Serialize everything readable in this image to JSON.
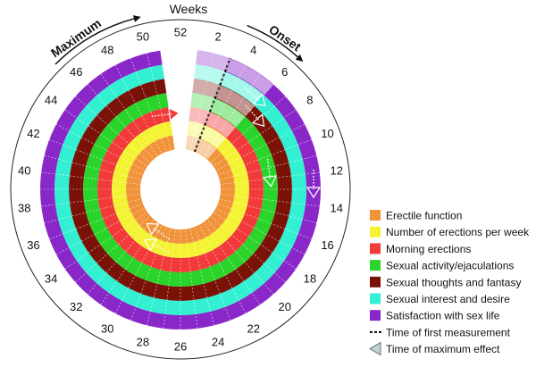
{
  "chart_data": {
    "type": "radial_timeline",
    "title": "Weeks",
    "arc_labels": {
      "onset": "Onset",
      "maximum": "Maximum"
    },
    "week_range": [
      0,
      52
    ],
    "tick_labels": [
      2,
      4,
      6,
      8,
      10,
      12,
      14,
      16,
      18,
      20,
      22,
      24,
      26,
      28,
      30,
      32,
      34,
      36,
      38,
      40,
      42,
      44,
      46,
      48,
      50,
      52
    ],
    "series": [
      {
        "name": "Erectile function",
        "color": "#f0933a",
        "first_measurement_week": 3,
        "onset_weeks": [
          3,
          6
        ],
        "maximum_week": 31
      },
      {
        "name": "Number of erections per week",
        "color": "#f3f333",
        "first_measurement_week": 3,
        "onset_weeks": [
          3,
          6
        ],
        "maximum_week": 30
      },
      {
        "name": "Morning erections",
        "color": "#f23a3a",
        "first_measurement_week": 3,
        "onset_weeks": [
          3,
          6
        ],
        "maximum_week": 51
      },
      {
        "name": "Sexual activity/ejaculations",
        "color": "#2bd42b",
        "first_measurement_week": 3,
        "onset_weeks": [
          3,
          6
        ],
        "maximum_week": 12
      },
      {
        "name": "Sexual thoughts and fantasy",
        "color": "#7a1208",
        "first_measurement_week": 3,
        "onset_weeks": [
          3,
          6
        ],
        "maximum_week": 7
      },
      {
        "name": "Sexual interest and desire",
        "color": "#33f0d2",
        "first_measurement_week": 3,
        "onset_weeks": [
          3,
          6
        ],
        "maximum_week": 6
      },
      {
        "name": "Satisfaction with sex life",
        "color": "#8a27c9",
        "first_measurement_week": 3,
        "onset_weeks": [
          3,
          6
        ],
        "maximum_week": 13
      }
    ],
    "legend": {
      "placement": "right",
      "items": [
        {
          "label": "Erectile function",
          "color": "#f0933a",
          "kind": "swatch"
        },
        {
          "label": "Number of erections per week",
          "color": "#f3f333",
          "kind": "swatch"
        },
        {
          "label": "Morning erections",
          "color": "#f23a3a",
          "kind": "swatch"
        },
        {
          "label": "Sexual activity/ejaculations",
          "color": "#2bd42b",
          "kind": "swatch"
        },
        {
          "label": "Sexual thoughts and fantasy",
          "color": "#7a1208",
          "kind": "swatch"
        },
        {
          "label": "Sexual interest and desire",
          "color": "#33f0d2",
          "kind": "swatch"
        },
        {
          "label": "Satisfaction with sex life",
          "color": "#8a27c9",
          "kind": "swatch"
        },
        {
          "label": "Time of first measurement",
          "color": "#000000",
          "kind": "dashed-line"
        },
        {
          "label": "Time of maximum effect",
          "color": "#b9d8d6",
          "kind": "arrow"
        }
      ]
    }
  }
}
